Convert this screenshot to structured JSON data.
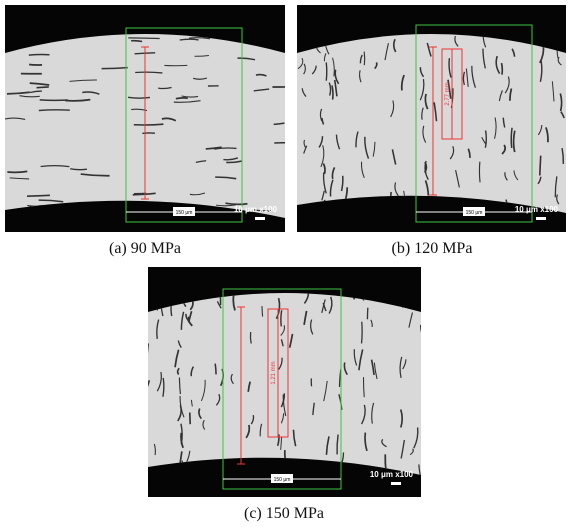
{
  "figure": {
    "panels": [
      {
        "caption": "(a) 90 MPa",
        "scale_label": "10 μm x100",
        "width_label": "150 μm"
      },
      {
        "caption": "(b) 120 MPa",
        "scale_label": "10 μm x100",
        "width_label": "150 μm",
        "depth_label": "2.77 mm"
      },
      {
        "caption": "(c) 150 MPa",
        "scale_label": "10 μm x100",
        "width_label": "150 μm",
        "depth_label": "1.21 mm"
      }
    ]
  }
}
